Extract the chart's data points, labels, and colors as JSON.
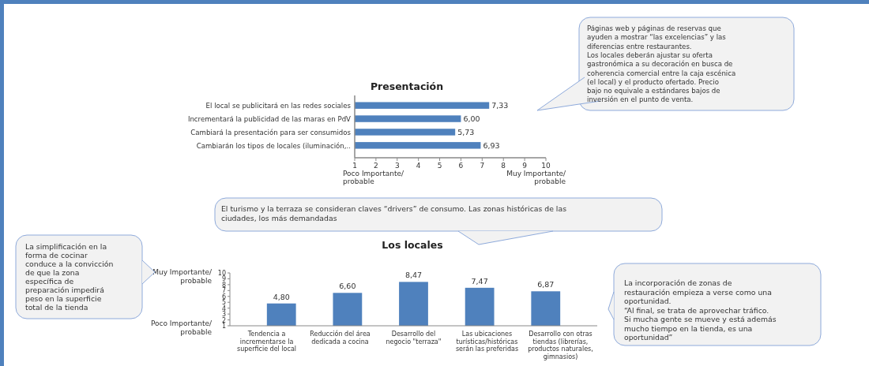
{
  "chart_data": [
    {
      "type": "bar",
      "orientation": "horizontal",
      "title": "Presentación",
      "categories": [
        "El local se publicitará en las redes sociales",
        "Incrementará la publicidad de las maras en PdV",
        "Cambiará la presentación para ser consumidos",
        "Cambiarán los tipos de locales (iluminación,.."
      ],
      "values": [
        7.33,
        6.0,
        5.73,
        6.93
      ],
      "value_labels": [
        "7,33",
        "6,00",
        "5,73",
        "6,93"
      ],
      "color": "#4f81bd",
      "xlim": [
        1,
        10
      ],
      "xticks": [
        1,
        2,
        3,
        4,
        5,
        6,
        7,
        8,
        9,
        10
      ],
      "annotations": [
        "Poco Importante/\nprobable",
        "Muy Importante/\nprobable",
        "Páginas web y páginas de reservas que\nayuden a mostrar “las excelencias” y las\ndiferencias entre restaurantes.\nLos locales deberán ajustar su oferta\ngastronómica a su decoración en busca de\ncoherencia comercial entre la caja escénica\n(el local) y el producto ofertado. Precio\nbajo no equivale a estándares bajos de\ninversión en el punto de venta."
      ]
    },
    {
      "type": "bar",
      "title": "Los locales",
      "categories": [
        "Tendencia a incrementarse la superficie del local",
        "Reducción del área dedicada a cocina",
        "Desarrollo del negocio \"terraza\"",
        "Las ubicaciones turísticas/históricas serán las preferidas",
        "Desarrollo con otras tiendas (librerías, productos naturales, gimnasios)"
      ],
      "values": [
        4.8,
        6.6,
        8.47,
        7.47,
        6.87
      ],
      "value_labels": [
        "4,80",
        "6,60",
        "8,47",
        "7,47",
        "6,87"
      ],
      "color": "#4f81bd",
      "ylim": [
        1,
        10
      ],
      "yticks": [
        1,
        2,
        3,
        4,
        5,
        6,
        7,
        8,
        9,
        10
      ],
      "annotations": [
        "Muy Importante/\nprobable",
        "Poco Importante/\nprobable",
        "El turismo y la terraza se consideran claves “drivers” de consumo. Las zonas históricas de las\nciudades, los más demandadas",
        "La simplificación en la\nforma de cocinar\nconduce a la convicción\nde que la zona\nespecífica de\npreparación impedirá\npeso en la superficie\ntotal de la tienda",
        "La incorporación de zonas de\nrestauración empieza a verse como una\noportunidad.\n“Al final, se trata de aprovechar tráfico.\nSi mucha gente se mueve y está además\nmucho tiempo en la tienda, es una\noportunidad”"
      ]
    }
  ]
}
